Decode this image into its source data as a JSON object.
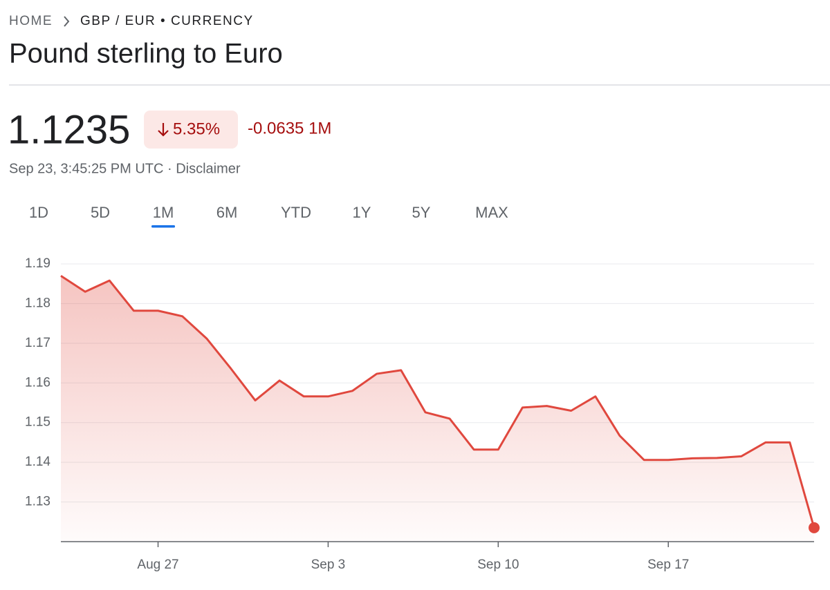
{
  "header": {
    "breadcrumb": [
      "HOME",
      "GBP / EUR • CURRENCY"
    ],
    "title": "Pound sterling to Euro"
  },
  "quote": {
    "price": "1.1235",
    "change_percent": "5.35%",
    "change": "-0.0635 1M",
    "timestamp": "Sep 23, 3:45:25 PM UTC · Disclaimer"
  },
  "tabs": [
    {
      "label": "1D"
    },
    {
      "label": "5D"
    },
    {
      "label": "1M",
      "selected": true
    },
    {
      "label": "6M"
    },
    {
      "label": "YTD"
    },
    {
      "label": "1Y"
    },
    {
      "label": "5Y"
    },
    {
      "label": "MAX"
    }
  ],
  "chart_data": {
    "type": "area",
    "categories": [
      null,
      null,
      null,
      null,
      "Aug 27",
      null,
      null,
      null,
      null,
      null,
      null,
      "Sep 3",
      null,
      null,
      null,
      null,
      null,
      null,
      "Sep 10",
      null,
      null,
      null,
      null,
      null,
      null,
      "Sep 17",
      null,
      null,
      null,
      null,
      null,
      null
    ],
    "values": [
      1.187,
      1.183,
      1.1858,
      1.1782,
      1.1782,
      1.1768,
      1.1712,
      1.1636,
      1.1556,
      1.1606,
      1.1566,
      1.1566,
      1.158,
      1.1623,
      1.1632,
      1.1526,
      1.151,
      1.1432,
      1.1432,
      1.1538,
      1.1542,
      1.153,
      1.1566,
      1.1467,
      1.1406,
      1.1406,
      1.141,
      1.1411,
      1.1415,
      1.145,
      1.145,
      1.1235
    ],
    "color": "#e0483e",
    "ylim": [
      1.12,
      1.19
    ],
    "yticks": [
      1.13,
      1.14,
      1.15,
      1.16,
      1.17,
      1.18,
      1.19
    ],
    "grid": true
  }
}
